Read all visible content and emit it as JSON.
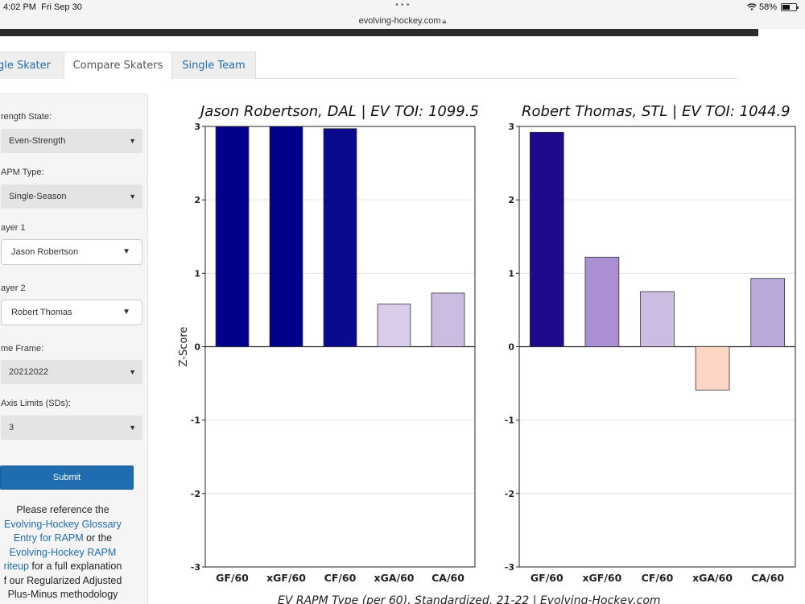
{
  "status_bar": {
    "time": "4:02 PM",
    "date": "Fri Sep 30",
    "dots": "•••",
    "url": "evolving-hockey.com",
    "lock_icon": "lock-icon",
    "battery_pct": "58%",
    "battery_level": 0.58
  },
  "tabs": [
    {
      "label": "ngle Skater"
    },
    {
      "label": "Compare Skaters"
    },
    {
      "label": "Single Team"
    }
  ],
  "sidebar": {
    "strength_label": "rength State:",
    "strength_value": "Even-Strength",
    "rapm_label": "APM Type:",
    "rapm_value": "Single-Season",
    "player1_label": "ayer 1",
    "player1_value": "Jason Robertson",
    "player2_label": "ayer 2",
    "player2_value": "Robert Thomas",
    "timeframe_label": "me Frame:",
    "timeframe_value": "20212022",
    "axis_label": "Axis Limits (SDs):",
    "axis_value": "3",
    "submit_label": "Submit",
    "note": {
      "line1": "Please reference the",
      "link1a": "Evolving-Hockey Glossary",
      "link1b": "Entry for RAPM",
      "mid": " or the",
      "link2a": "Evolving-Hockey RAPM",
      "link2b": "riteup",
      "tail1": " for a full explanation",
      "tail2": "f our Regularized Adjusted",
      "tail3": "Plus-Minus methodology"
    }
  },
  "footer_caption": "EV RAPM Type (per 60), Standardized, 21-22   |   Evolving-Hockey.com",
  "chart_data": [
    {
      "type": "bar",
      "title": "Jason Robertson, DAL  |  EV TOI: 1099.5",
      "ylabel": "Z-Score",
      "categories": [
        "GF/60",
        "xGF/60",
        "CF/60",
        "xGA/60",
        "CA/60"
      ],
      "values": [
        3.0,
        3.0,
        2.97,
        0.58,
        0.73
      ],
      "colors": [
        "#00008b",
        "#00008b",
        "#0a0a8e",
        "#d9cdea",
        "#cbbde2"
      ],
      "ylim": [
        -3,
        3
      ],
      "yticks": [
        "3",
        "2",
        "1",
        "0",
        "-1",
        "-2",
        "-3"
      ],
      "grid": true
    },
    {
      "type": "bar",
      "title": "Robert Thomas, STL  |  EV TOI: 1044.9",
      "ylabel": "",
      "categories": [
        "GF/60",
        "xGF/60",
        "CF/60",
        "xGA/60",
        "CA/60"
      ],
      "values": [
        2.92,
        1.22,
        0.75,
        -0.59,
        0.93
      ],
      "colors": [
        "#1f0a8c",
        "#aa90d2",
        "#cbbde2",
        "#fdd5c4",
        "#bca9dc"
      ],
      "ylim": [
        -3,
        3
      ],
      "yticks": [
        "3",
        "2",
        "1",
        "0",
        "-1",
        "-2",
        "-3"
      ],
      "grid": true
    }
  ]
}
